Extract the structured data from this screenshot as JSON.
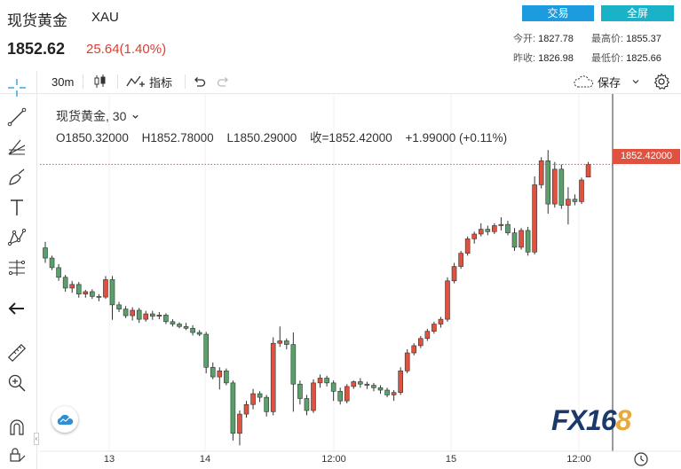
{
  "header": {
    "title": "现货黄金",
    "symbol": "XAU",
    "price": "1852.62",
    "change": "25.64(1.40%)",
    "trade_button": "交易",
    "fullscreen_button": "全屏",
    "open_label": "今开:",
    "open_value": "1827.78",
    "high_label": "最高价:",
    "high_value": "1855.37",
    "prev_close_label": "昨收:",
    "prev_close_value": "1826.98",
    "low_label": "最低价:",
    "low_value": "1825.66"
  },
  "toolbar": {
    "interval": "30m",
    "indicators_label": "指标",
    "save_label": "保存"
  },
  "legend": {
    "name": "现货黄金, 30",
    "open": "O1850.32000",
    "high": "H1852.78000",
    "low": "L1850.29000",
    "close": "收=1852.42000",
    "change": "+1.99000 (+0.11%)"
  },
  "price_tag": "1852.42000",
  "logo": {
    "main": "FX16",
    "accent": "8"
  },
  "colors": {
    "up": "#e0513f",
    "down": "#5aa06b",
    "accent_blue": "#1d9bdf",
    "accent_teal": "#1ab2c7"
  },
  "chart_data": {
    "type": "candlestick",
    "interval": "30m",
    "last_price": 1852.42,
    "x_ticks": [
      "13",
      "14",
      "12:00",
      "15",
      "12:00"
    ],
    "candles": [
      [
        1838.5,
        1839.5,
        1836.0,
        1836.8
      ],
      [
        1836.8,
        1837.2,
        1834.8,
        1835.2
      ],
      [
        1835.2,
        1835.8,
        1833.0,
        1833.6
      ],
      [
        1833.6,
        1834.0,
        1831.2,
        1831.8
      ],
      [
        1831.8,
        1833.0,
        1831.0,
        1832.4
      ],
      [
        1832.4,
        1832.8,
        1830.2,
        1830.8
      ],
      [
        1830.8,
        1831.5,
        1830.2,
        1831.2
      ],
      [
        1831.2,
        1831.6,
        1830.0,
        1830.4
      ],
      [
        1830.4,
        1830.8,
        1829.6,
        1830.3
      ],
      [
        1830.3,
        1833.8,
        1830.0,
        1833.2
      ],
      [
        1833.2,
        1833.8,
        1826.5,
        1829.0
      ],
      [
        1829.0,
        1829.5,
        1827.8,
        1828.3
      ],
      [
        1828.3,
        1828.8,
        1826.8,
        1827.2
      ],
      [
        1827.2,
        1828.6,
        1826.4,
        1828.1
      ],
      [
        1828.1,
        1828.5,
        1826.0,
        1826.6
      ],
      [
        1826.6,
        1828.0,
        1826.2,
        1827.5
      ],
      [
        1827.5,
        1828.0,
        1826.5,
        1827.1
      ],
      [
        1827.1,
        1827.8,
        1826.6,
        1827.3
      ],
      [
        1827.3,
        1827.6,
        1825.8,
        1826.2
      ],
      [
        1826.2,
        1826.6,
        1825.4,
        1825.8
      ],
      [
        1825.8,
        1826.1,
        1825.1,
        1825.4
      ],
      [
        1825.4,
        1826.0,
        1824.8,
        1825.1
      ],
      [
        1825.1,
        1825.6,
        1823.9,
        1824.4
      ],
      [
        1824.4,
        1824.8,
        1823.8,
        1824.1
      ],
      [
        1824.1,
        1824.5,
        1817.6,
        1818.6
      ],
      [
        1818.6,
        1819.4,
        1816.6,
        1817.0
      ],
      [
        1817.0,
        1818.6,
        1814.9,
        1818.0
      ],
      [
        1818.0,
        1818.4,
        1815.6,
        1816.0
      ],
      [
        1816.0,
        1816.4,
        1806.4,
        1807.6
      ],
      [
        1807.6,
        1811.4,
        1805.6,
        1810.8
      ],
      [
        1810.8,
        1813.0,
        1810.2,
        1812.4
      ],
      [
        1812.4,
        1815.0,
        1811.6,
        1814.2
      ],
      [
        1814.2,
        1814.6,
        1812.8,
        1813.6
      ],
      [
        1813.6,
        1814.0,
        1810.4,
        1811.2
      ],
      [
        1811.2,
        1823.6,
        1810.6,
        1822.6
      ],
      [
        1822.6,
        1825.4,
        1822.0,
        1823.0
      ],
      [
        1823.0,
        1823.4,
        1821.6,
        1822.4
      ],
      [
        1822.4,
        1824.4,
        1811.2,
        1815.8
      ],
      [
        1815.8,
        1816.4,
        1812.4,
        1813.4
      ],
      [
        1813.4,
        1814.0,
        1810.6,
        1811.4
      ],
      [
        1811.4,
        1816.6,
        1811.0,
        1816.0
      ],
      [
        1816.0,
        1817.4,
        1815.2,
        1816.8
      ],
      [
        1816.8,
        1817.2,
        1815.4,
        1816.0
      ],
      [
        1816.0,
        1816.4,
        1813.0,
        1814.6
      ],
      [
        1814.6,
        1815.2,
        1812.4,
        1813.0
      ],
      [
        1813.0,
        1815.8,
        1812.6,
        1815.4
      ],
      [
        1815.4,
        1816.4,
        1815.0,
        1816.2
      ],
      [
        1816.2,
        1816.8,
        1815.2,
        1815.8
      ],
      [
        1815.8,
        1816.2,
        1815.0,
        1815.6
      ],
      [
        1815.6,
        1816.0,
        1814.6,
        1815.2
      ],
      [
        1815.2,
        1815.6,
        1814.2,
        1814.8
      ],
      [
        1814.8,
        1815.2,
        1813.6,
        1814.0
      ],
      [
        1814.0,
        1814.8,
        1813.0,
        1814.4
      ],
      [
        1814.4,
        1818.6,
        1814.0,
        1818.0
      ],
      [
        1818.0,
        1821.6,
        1817.6,
        1821.0
      ],
      [
        1821.0,
        1822.6,
        1820.6,
        1822.2
      ],
      [
        1822.2,
        1823.8,
        1821.8,
        1823.4
      ],
      [
        1823.4,
        1825.0,
        1823.0,
        1824.6
      ],
      [
        1824.6,
        1826.2,
        1824.2,
        1825.8
      ],
      [
        1825.8,
        1827.0,
        1825.2,
        1826.6
      ],
      [
        1826.6,
        1833.6,
        1826.2,
        1833.0
      ],
      [
        1833.0,
        1836.0,
        1832.6,
        1835.4
      ],
      [
        1835.4,
        1838.0,
        1835.0,
        1837.6
      ],
      [
        1837.6,
        1840.4,
        1837.2,
        1840.0
      ],
      [
        1840.0,
        1841.2,
        1839.2,
        1840.8
      ],
      [
        1840.8,
        1842.6,
        1840.4,
        1841.6
      ],
      [
        1841.6,
        1842.2,
        1840.6,
        1841.2
      ],
      [
        1841.2,
        1842.6,
        1840.8,
        1842.2
      ],
      [
        1842.2,
        1843.6,
        1841.4,
        1842.4
      ],
      [
        1842.4,
        1843.0,
        1840.6,
        1841.0
      ],
      [
        1841.0,
        1841.8,
        1838.0,
        1838.6
      ],
      [
        1838.6,
        1841.8,
        1838.2,
        1841.4
      ],
      [
        1841.4,
        1842.0,
        1837.2,
        1837.8
      ],
      [
        1837.8,
        1850.4,
        1837.4,
        1849.0
      ],
      [
        1849.0,
        1853.6,
        1848.4,
        1853.0
      ],
      [
        1853.0,
        1854.8,
        1844.2,
        1845.8
      ],
      [
        1845.8,
        1852.8,
        1845.2,
        1851.6
      ],
      [
        1851.6,
        1852.4,
        1845.0,
        1845.6
      ],
      [
        1845.6,
        1848.6,
        1842.4,
        1846.6
      ],
      [
        1846.6,
        1847.4,
        1845.6,
        1846.2
      ],
      [
        1846.2,
        1850.2,
        1845.8,
        1849.8
      ],
      [
        1850.3,
        1852.8,
        1850.3,
        1852.4
      ]
    ]
  }
}
